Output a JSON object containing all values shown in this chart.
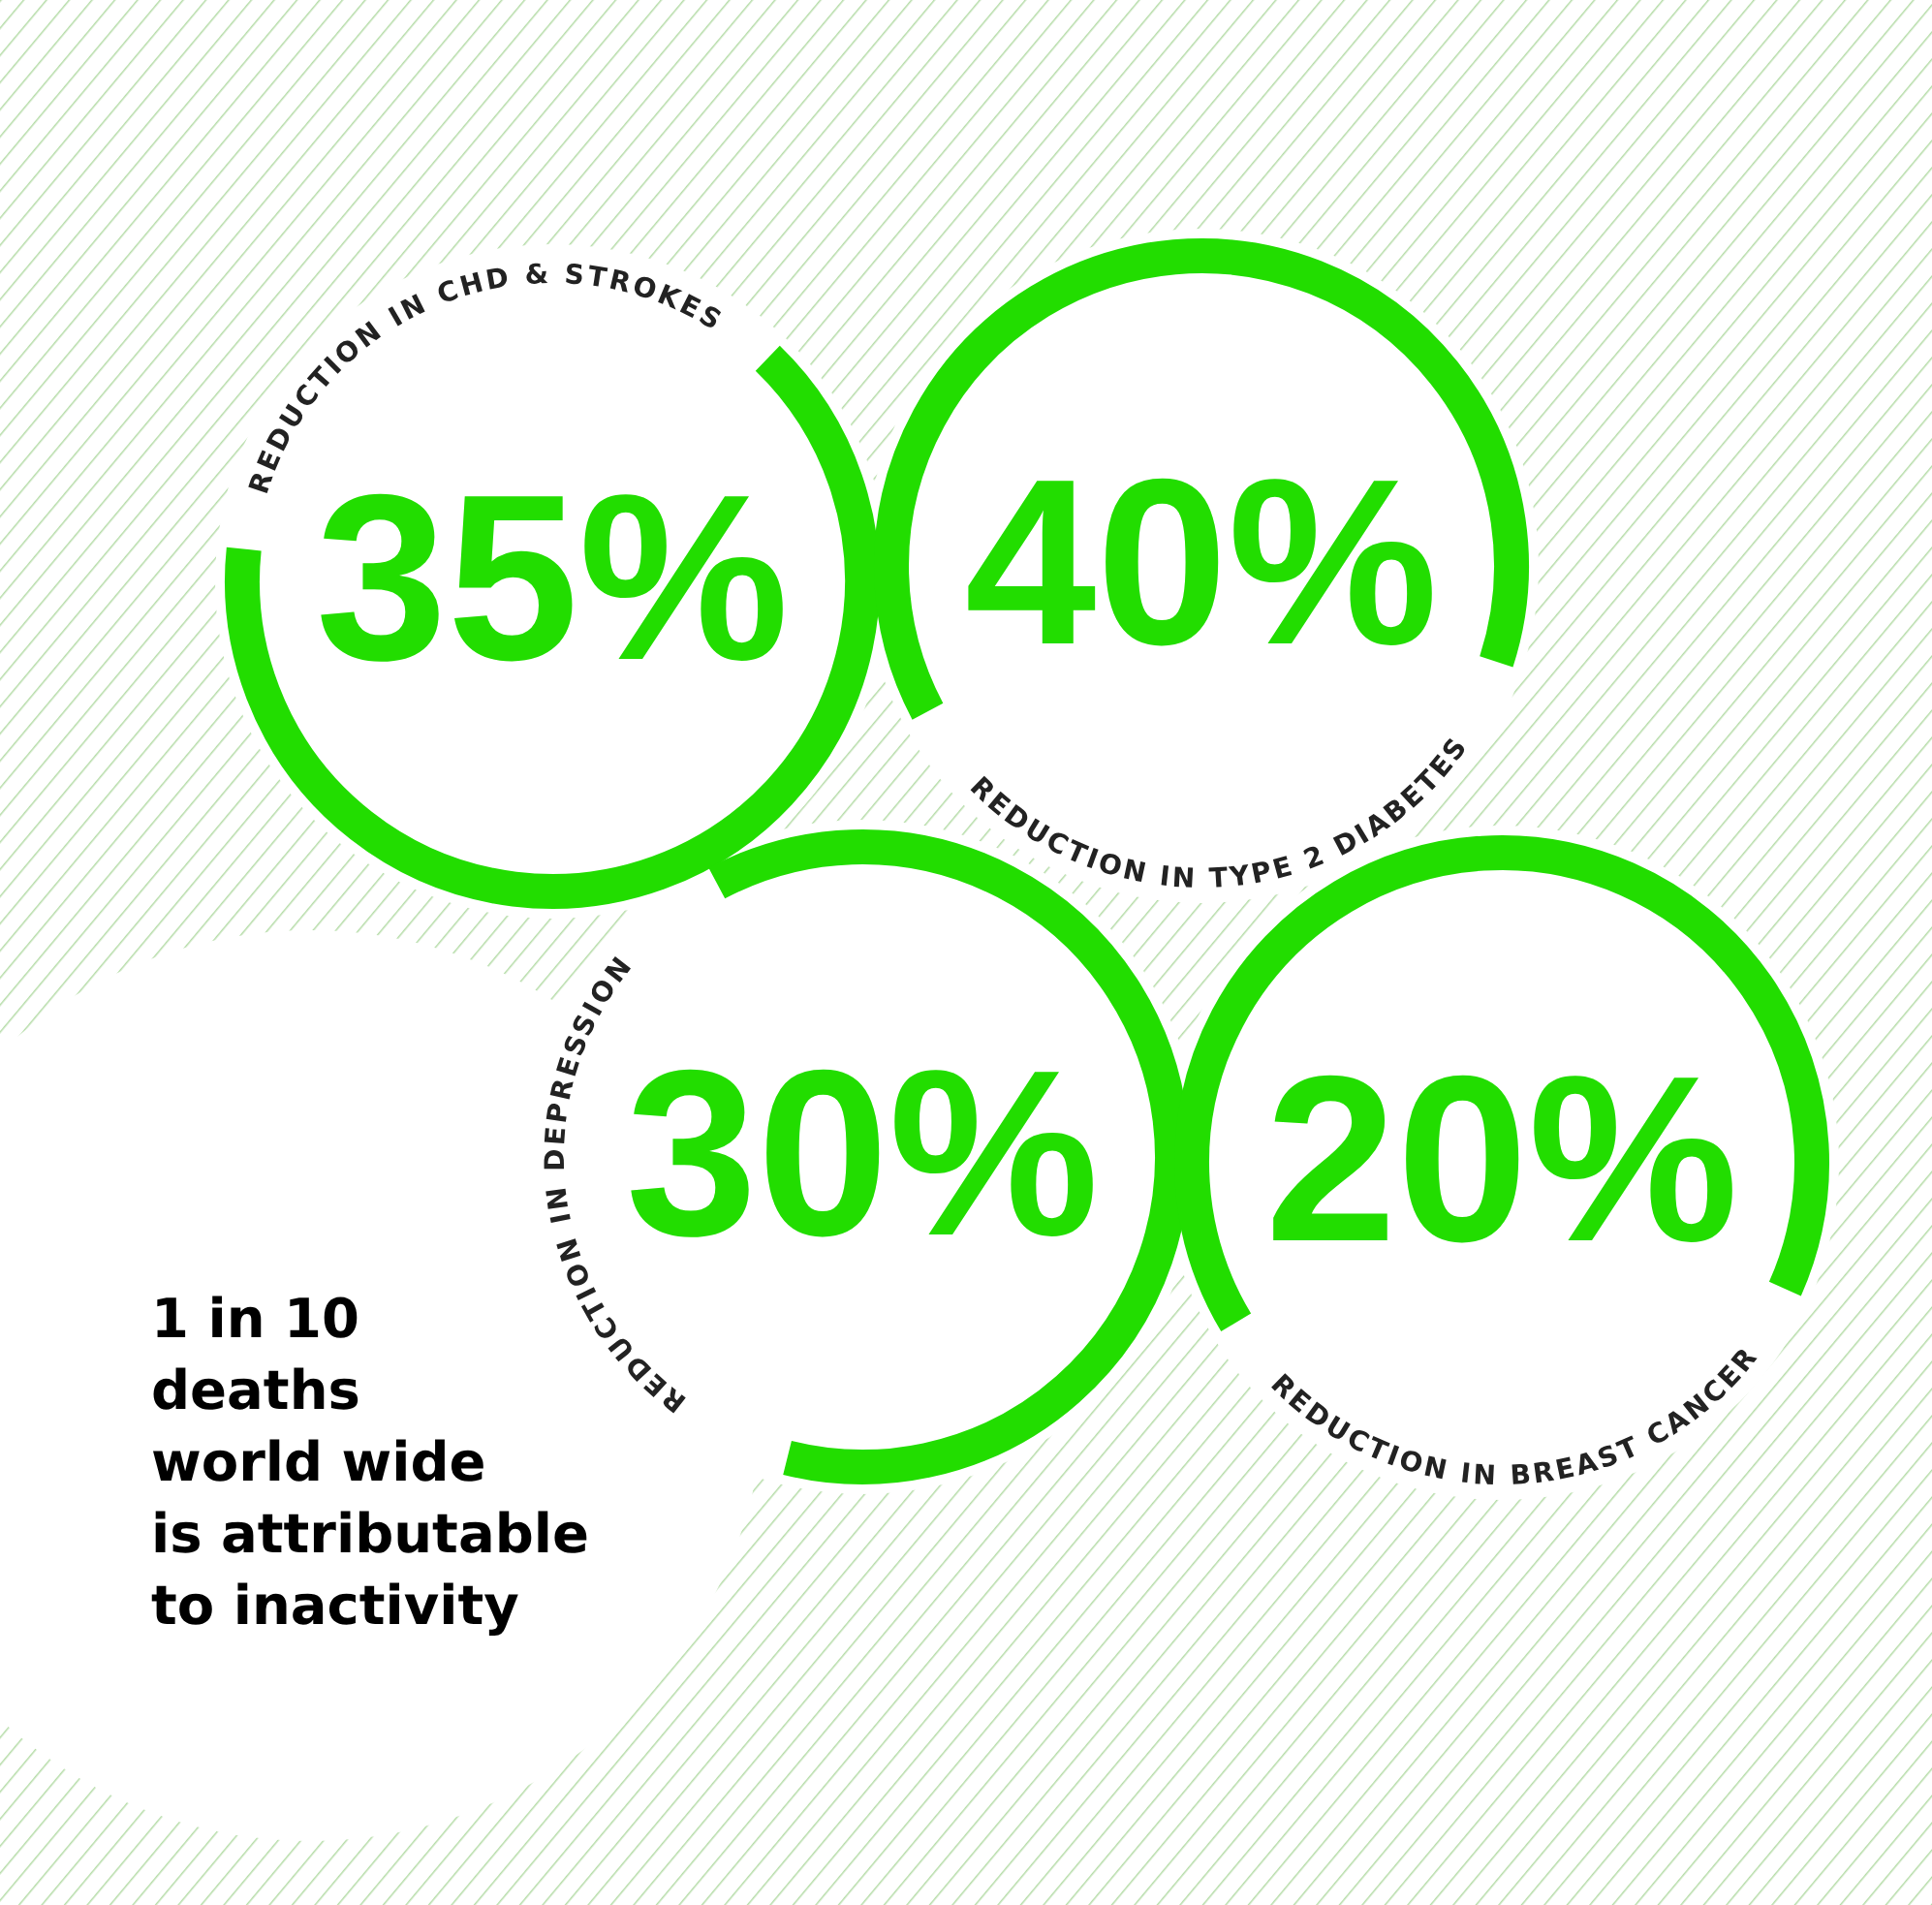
{
  "chart_data": {
    "type": "other",
    "categories": [
      "REDUCTION IN CHD & STROKES",
      "REDUCTION IN TYPE 2 DIABETES",
      "REDUCTION IN DEPRESSION",
      "REDUCTION IN BREAST CANCER"
    ],
    "values": [
      35,
      40,
      30,
      20
    ],
    "value_labels": [
      "35%",
      "40%",
      "30%",
      "20%"
    ],
    "color": "#22dd00",
    "annotations": [
      "1 in 10\ndeaths\nworld wide\nis attributable\nto inactivity"
    ]
  }
}
